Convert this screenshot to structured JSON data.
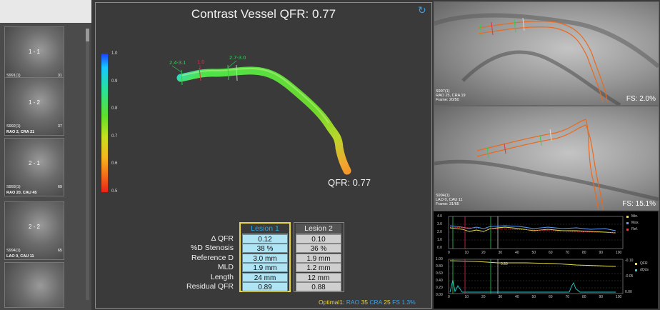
{
  "title": "Contrast Vessel QFR: 0.77",
  "qfr_end_label": "QFR: 0.77",
  "colorbar_ticks": [
    "1.0",
    "0.9",
    "0.8",
    "0.7",
    "0.6",
    "0.5"
  ],
  "vessel_annotations": [
    {
      "text": "2.4-3.1",
      "color": "#33cc55"
    },
    {
      "text": "1.0",
      "color": "#e0304a"
    },
    {
      "text": "2.7-3.0",
      "color": "#33cc55"
    }
  ],
  "thumbnails": [
    {
      "num": "1 - 1",
      "id": "S991(1)",
      "count": "31",
      "angle": "LAO 26, CAU 4"
    },
    {
      "num": "1 - 2",
      "id": "S992(1)",
      "count": "37",
      "angle": "RAO 2, CRA 21"
    },
    {
      "num": "2 - 1",
      "id": "S993(1)",
      "count": "69",
      "angle": "RAO 20, CAU 45"
    },
    {
      "num": "2 - 2",
      "id": "S994(1)",
      "count": "65",
      "angle": "LAO 0, CAU 11"
    },
    {
      "num": "",
      "id": "",
      "count": "",
      "angle": ""
    }
  ],
  "table": {
    "row_labels": [
      "Δ QFR",
      "%D Stenosis",
      "Reference D",
      "MLD",
      "Length",
      "Residual QFR"
    ],
    "lesion1": {
      "header": "Lesion 1",
      "values": [
        "0.12",
        "38 %",
        "3.0 mm",
        "1.9 mm",
        "24 mm",
        "0.89"
      ]
    },
    "lesion2": {
      "header": "Lesion 2",
      "values": [
        "0.10",
        "36 %",
        "1.9 mm",
        "1.2 mm",
        "12 mm",
        "0.88"
      ]
    }
  },
  "optimal": {
    "prefix": "Optimal1:",
    "rao_label": "RAO",
    "rao": "35",
    "cra_label": "CRA",
    "cra": "25",
    "fs": "FS 1.3%"
  },
  "right_images": [
    {
      "id": "S997(1)",
      "angle": "RAO 25, CRA 19",
      "frame": "Frame: 20/50",
      "fs": "FS: 2.0%"
    },
    {
      "id": "S994(1)",
      "angle": "LAO 0, CAU 11",
      "frame": "Frame: 31/65",
      "fs": "FS: 15.1%"
    }
  ],
  "plot1": {
    "legend": [
      "Min.",
      "Max.",
      "Ref."
    ],
    "legend_colors": [
      "#e8e04a",
      "#5aa0ff",
      "#ff3030"
    ],
    "yticks": [
      "4.0",
      "3.0",
      "2.0",
      "1.0",
      "0.0"
    ],
    "xticks": [
      "0",
      "10",
      "20",
      "30",
      "40",
      "50",
      "60",
      "70",
      "80",
      "90",
      "100"
    ]
  },
  "plot2": {
    "legend": [
      "QFR",
      "dQds"
    ],
    "legend_colors": [
      "#e8e04a",
      "#20d0d0"
    ],
    "yticks_left": [
      "1.00",
      "0.80",
      "0.60",
      "0.40",
      "0.20",
      "0.00"
    ],
    "yticks_right": [
      "-0.10",
      "-0.05",
      "0.00"
    ],
    "xticks": [
      "0",
      "10",
      "20",
      "30",
      "40",
      "50",
      "60",
      "70",
      "80",
      "90",
      "100"
    ],
    "annot": "0.89"
  }
}
